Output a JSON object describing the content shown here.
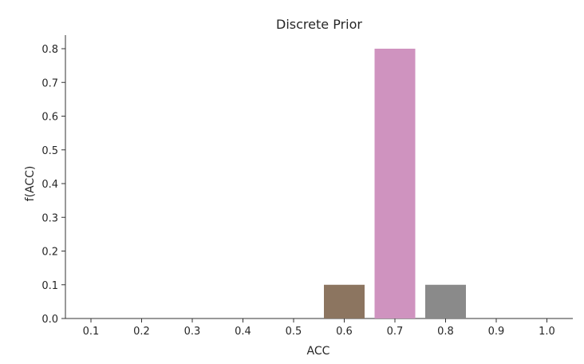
{
  "chart_data": {
    "type": "bar",
    "title": "Discrete Prior",
    "xlabel": "ACC",
    "ylabel": "f(ACC)",
    "categories": [
      "0.1",
      "0.2",
      "0.3",
      "0.4",
      "0.5",
      "0.6",
      "0.7",
      "0.8",
      "0.9",
      "1.0"
    ],
    "values": [
      0.0,
      0.0,
      0.0,
      0.0,
      0.0,
      0.1,
      0.8,
      0.1,
      0.0,
      0.0
    ],
    "bar_colors": [
      "#1f77b4",
      "#ff7f0e",
      "#2ca02c",
      "#d62728",
      "#9467bd",
      "#8c7560",
      "#cf93bf",
      "#8a8a8a",
      "#bcbd22",
      "#17becf"
    ],
    "ylim": [
      0,
      0.84
    ],
    "yticks": [
      "0.0",
      "0.1",
      "0.2",
      "0.3",
      "0.4",
      "0.5",
      "0.6",
      "0.7",
      "0.8"
    ],
    "grid": false,
    "legend": "none"
  }
}
